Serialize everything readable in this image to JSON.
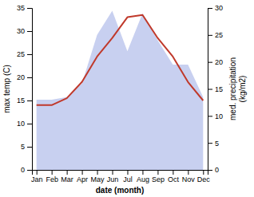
{
  "chart_data": {
    "type": "line",
    "x_label": "date (month)",
    "y_label": "max temp (C)",
    "y2_label": "med. precipitation\n(kg/m2)",
    "categories": [
      "Jan",
      "Feb",
      "Mar",
      "Apr",
      "May",
      "Jun",
      "Jul",
      "Aug",
      "Sep",
      "Oct",
      "Nov",
      "Dec"
    ],
    "series": [
      {
        "type": "area",
        "axis": "y2",
        "color": "#c8d0f0",
        "values": [
          13.0,
          13.0,
          13.5,
          16.0,
          25.0,
          29.5,
          22.0,
          29.0,
          24.0,
          19.5,
          19.5,
          13.5
        ]
      },
      {
        "type": "line",
        "color": "#c0392b",
        "values": [
          14.0,
          14.0,
          15.5,
          19.0,
          24.5,
          28.5,
          33.0,
          33.5,
          28.5,
          24.5,
          19.0,
          15.0
        ]
      }
    ],
    "ylim": [
      0,
      35
    ],
    "yticks": [
      0,
      5,
      10,
      15,
      20,
      25,
      30,
      35
    ],
    "y2lim": [
      0,
      30
    ],
    "y2ticks": [
      0,
      5,
      10,
      15,
      20,
      25,
      30
    ],
    "grid": false
  }
}
